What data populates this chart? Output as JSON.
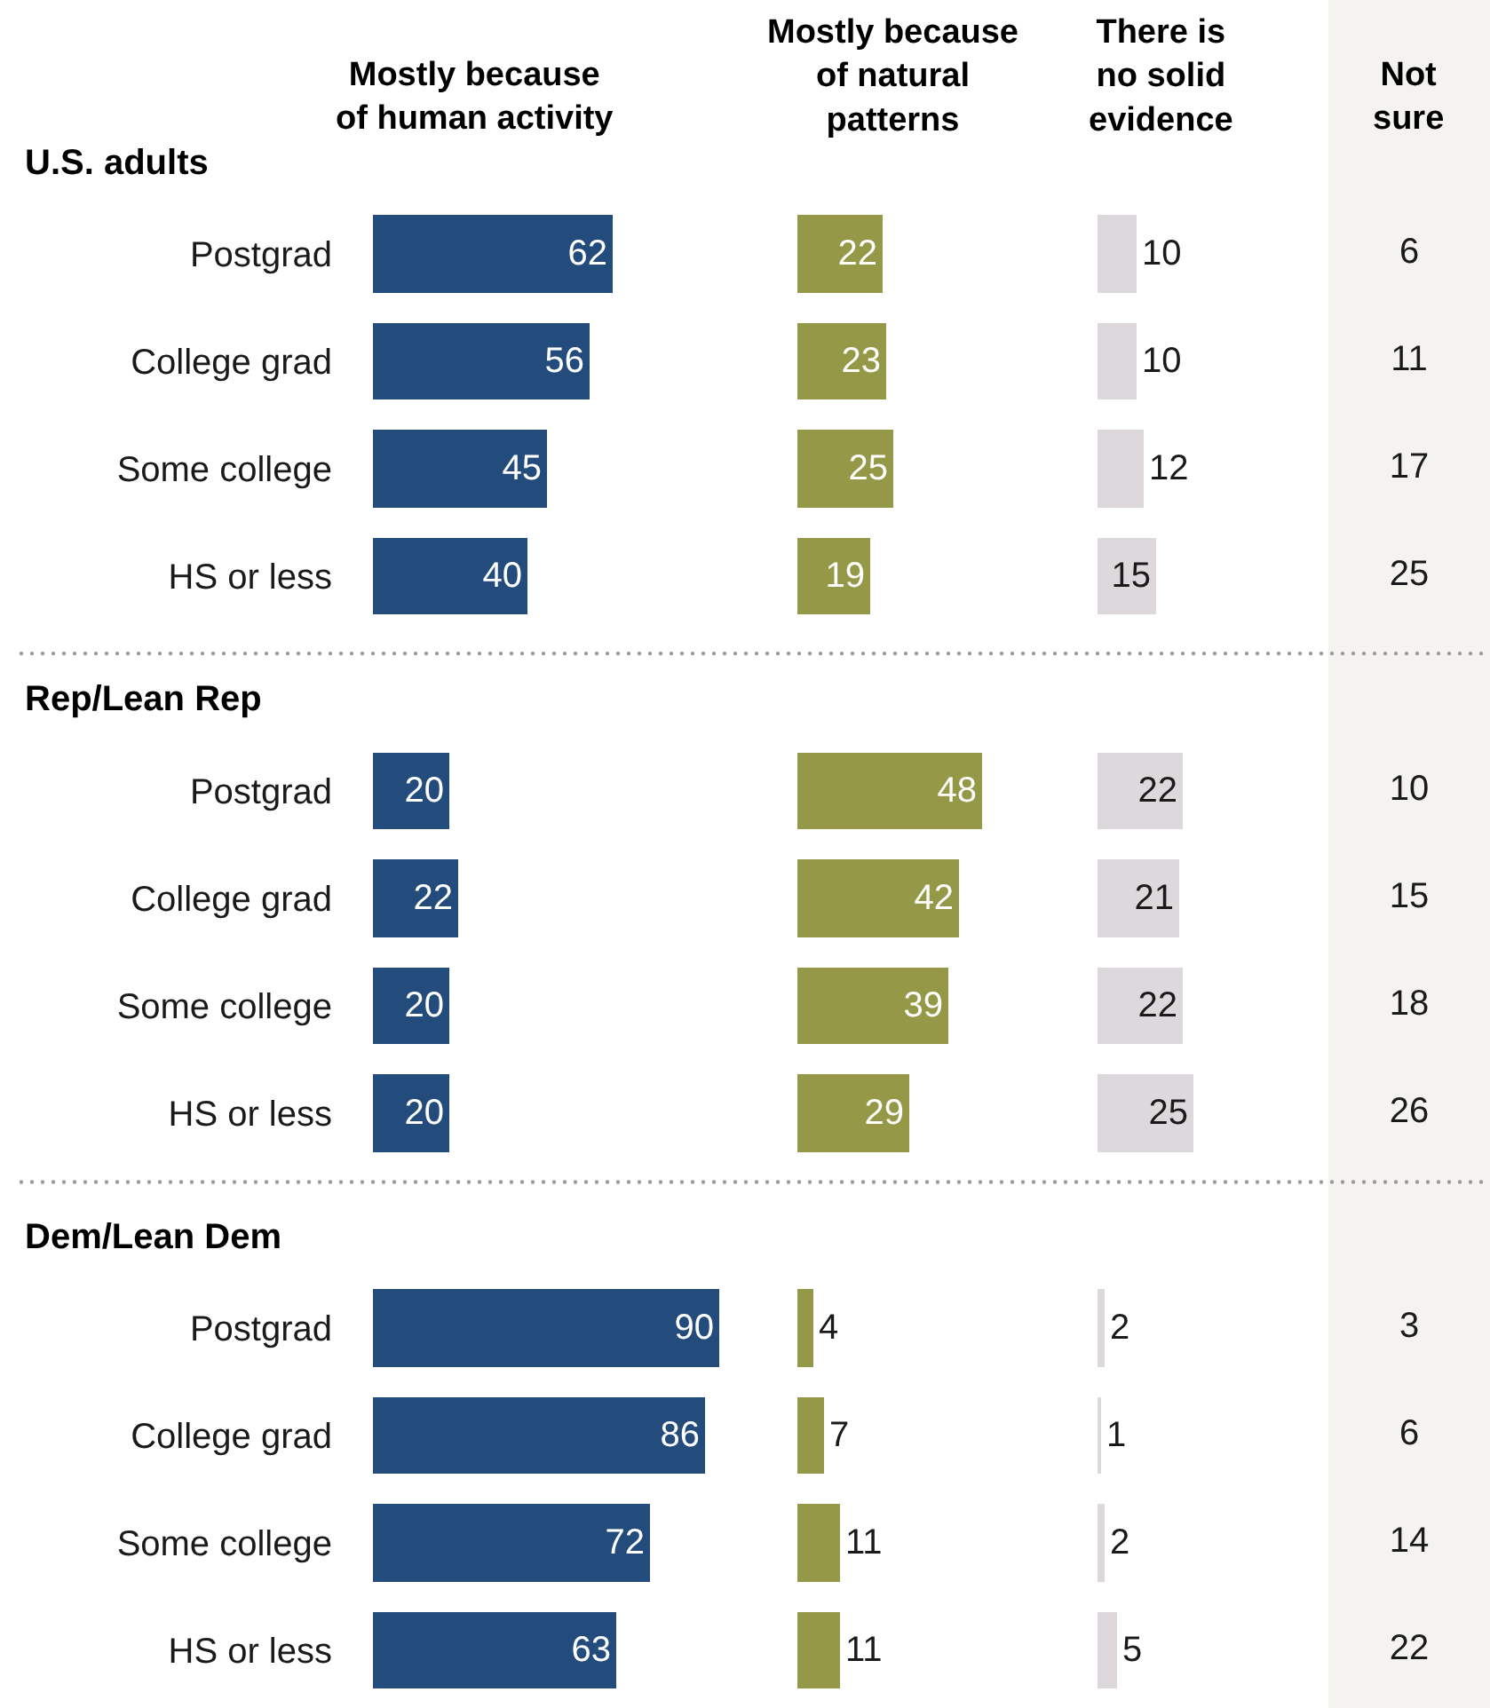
{
  "chart_data": [
    {
      "type": "bar",
      "orientation": "horizontal",
      "title": "Mostly because\nof human activity",
      "categories": [
        "Postgrad",
        "College grad",
        "Some college",
        "HS or less",
        "Postgrad",
        "College grad",
        "Some college",
        "HS or less",
        "Postgrad",
        "College grad",
        "Some college",
        "HS or less"
      ],
      "values": [
        62,
        56,
        45,
        40,
        20,
        22,
        20,
        20,
        90,
        86,
        72,
        63
      ],
      "color": "#234b7c",
      "data_labels": true,
      "tick_labels": "y",
      "annotations": [
        "U.S. adults",
        "Rep/Lean Rep",
        "Dem/Lean Dem"
      ]
    },
    {
      "type": "bar",
      "orientation": "horizontal",
      "title": "Mostly because\nof natural\npatterns",
      "categories": [
        "Postgrad",
        "College grad",
        "Some college",
        "HS or less",
        "Postgrad",
        "College grad",
        "Some college",
        "HS or less",
        "Postgrad",
        "College grad",
        "Some college",
        "HS or less"
      ],
      "values": [
        22,
        23,
        25,
        19,
        48,
        42,
        39,
        29,
        4,
        7,
        11,
        11
      ],
      "color": "#959846",
      "data_labels": true,
      "tick_labels": false
    },
    {
      "type": "bar",
      "orientation": "horizontal",
      "title": "There is\nno solid\nevidence",
      "categories": [
        "Postgrad",
        "College grad",
        "Some college",
        "HS or less",
        "Postgrad",
        "College grad",
        "Some college",
        "HS or less",
        "Postgrad",
        "College grad",
        "Some college",
        "HS or less"
      ],
      "values": [
        10,
        10,
        12,
        15,
        22,
        21,
        22,
        25,
        2,
        1,
        2,
        5
      ],
      "color": "#dcd8db",
      "data_labels": true,
      "tick_labels": false
    },
    {
      "type": "other",
      "title": "Not\nsure",
      "values": [
        6,
        11,
        17,
        25,
        10,
        15,
        18,
        26,
        3,
        6,
        14,
        22
      ],
      "data_labels": true
    }
  ]
}
